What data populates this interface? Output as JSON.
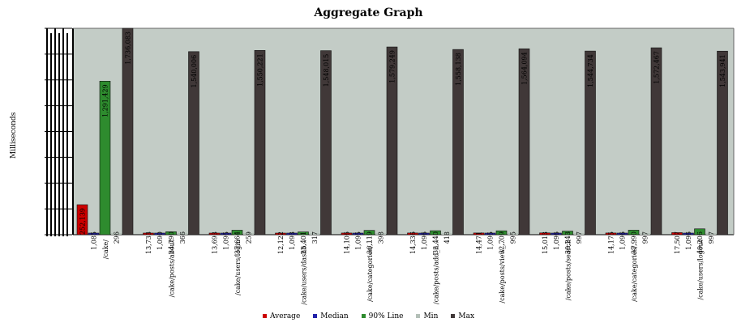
{
  "chart_data": {
    "type": "bar",
    "title": "Aggregate Graph",
    "ylabel": "Milliseconds",
    "xlabel": "",
    "ylim": [
      0,
      1736083
    ],
    "grid": false,
    "legend_position": "bottom",
    "categories": [
      "/cake/",
      "/cake/posts/about",
      "/cake/users/login",
      "/cake/users/dashb...",
      "/cake/categories/...",
      "/cake/posts/add_n...",
      "/cake/posts/view_...",
      "/cake/posts/search",
      "/cake/categories/...",
      "/cake/users/logout"
    ],
    "series": [
      {
        "name": "Average",
        "color": "#cc0000",
        "values": [
          252139,
          13733,
          13693,
          12122,
          14106,
          14336,
          14471,
          15013,
          14175,
          17507
        ],
        "labels": [
          "252,139",
          "13,733",
          "13,693",
          "12,122",
          "14,106",
          "14,336",
          "14,471",
          "15,013",
          "14,175",
          "17,507"
        ]
      },
      {
        "name": "Median",
        "color": "#2222aa",
        "values": [
          1085,
          1090,
          1095,
          1093,
          1095,
          1096,
          1095,
          1096,
          1096,
          1096
        ],
        "labels": [
          "1,085",
          "1,090",
          "1,095",
          "1,093",
          "1,095",
          "1,096",
          "1,095",
          "1,096",
          "1,096",
          "1,096"
        ]
      },
      {
        "name": "90% Line",
        "color": "#2e8b2e",
        "values": [
          1291429,
          24790,
          37664,
          23401,
          36119,
          33440,
          32709,
          30243,
          37990,
          49206
        ],
        "labels": [
          "1,291,429",
          "24,790",
          "37,664",
          "23,401",
          "36,119",
          "33,440",
          "32,709",
          "30,243",
          "37,990",
          "49,206"
        ]
      },
      {
        "name": "Min",
        "color": "#b4c0b8",
        "values": [
          296,
          366,
          259,
          317,
          398,
          418,
          995,
          997,
          997,
          997
        ],
        "labels": [
          "296",
          "366",
          "259",
          "317",
          "398",
          "418",
          "995",
          "997",
          "997",
          "997"
        ]
      },
      {
        "name": "Max",
        "color": "#403838",
        "values": [
          1736083,
          1540006,
          1550221,
          1548015,
          1579249,
          1558138,
          1564094,
          1544734,
          1572467,
          1543941
        ],
        "labels": [
          "1,736,083",
          "1,540,006",
          "1,550,221",
          "1,548,015",
          "1,579,249",
          "1,558,138",
          "1,564,094",
          "1,544,734",
          "1,572,467",
          "1,543,941"
        ]
      }
    ]
  }
}
